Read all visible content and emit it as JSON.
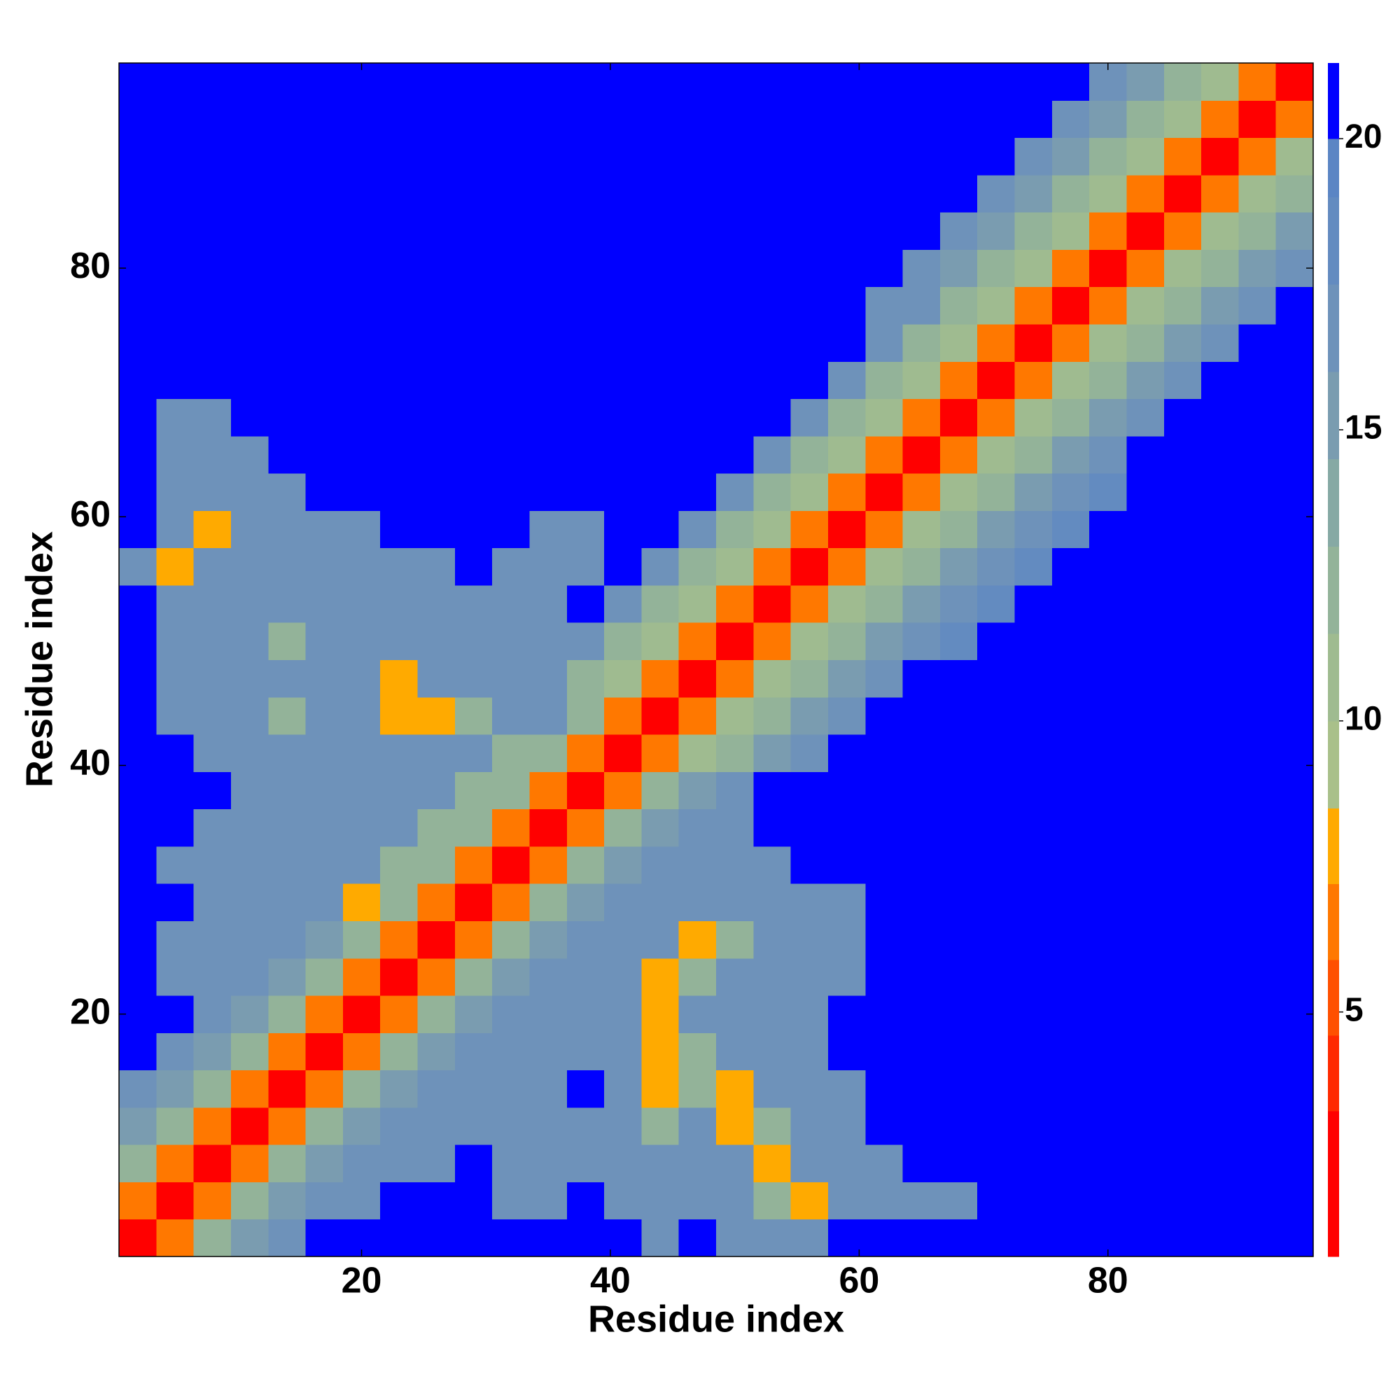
{
  "chart_data": {
    "type": "heatmap",
    "xlabel": "Residue index",
    "ylabel": "Residue index",
    "xbins": [
      0.5,
      3.5,
      6.5,
      9.5,
      12.5,
      15.5,
      18.5,
      21.5,
      24.5,
      27.5,
      30.5,
      33.5,
      36.5,
      39.5,
      42.5,
      45.5,
      48.5,
      51.5,
      54.5,
      57.5,
      60.5,
      63.5,
      66.5,
      69.5,
      72.5,
      75.5,
      78.5,
      81.5,
      84.5,
      87.5,
      90.5,
      93.5,
      96.5
    ],
    "ybins": [
      0.5,
      3.5,
      6.5,
      9.5,
      12.5,
      15.5,
      18.5,
      21.5,
      24.5,
      27.5,
      30.5,
      33.5,
      36.5,
      39.5,
      42.5,
      45.5,
      48.5,
      51.5,
      54.5,
      57.5,
      60.5,
      63.5,
      66.5,
      69.5,
      72.5,
      75.5,
      78.5,
      81.5,
      84.5,
      87.5,
      90.5,
      93.5,
      96.5
    ],
    "xlim": [
      0.5,
      96.5
    ],
    "ylim": [
      0.5,
      96.5
    ],
    "xticks": [
      20,
      40,
      60,
      80
    ],
    "yticks": [
      20,
      40,
      60,
      80
    ],
    "z": [
      [
        2,
        7,
        12,
        15,
        17,
        21,
        21,
        21,
        21,
        21,
        21,
        21,
        21,
        21,
        17,
        21,
        17,
        17,
        17,
        21,
        21,
        21,
        21,
        21,
        21,
        21,
        21,
        21,
        21,
        21,
        21,
        21
      ],
      [
        7,
        2,
        7,
        12,
        15,
        17,
        17,
        21,
        21,
        21,
        17,
        17,
        21,
        17,
        17,
        17,
        17,
        13,
        8,
        17,
        17,
        17,
        17,
        21,
        21,
        21,
        21,
        21,
        21,
        21,
        21,
        21
      ],
      [
        12,
        7,
        2,
        7,
        12,
        15,
        17,
        17,
        17,
        21,
        17,
        17,
        17,
        17,
        17,
        17,
        17,
        8,
        17,
        17,
        17,
        21,
        21,
        21,
        21,
        21,
        21,
        21,
        21,
        21,
        21,
        21
      ],
      [
        15,
        12,
        7,
        2,
        7,
        12,
        15,
        17,
        17,
        17,
        17,
        17,
        17,
        17,
        13,
        17,
        8,
        13,
        17,
        17,
        21,
        21,
        21,
        21,
        21,
        21,
        21,
        21,
        21,
        21,
        21,
        21
      ],
      [
        17,
        15,
        12,
        7,
        2,
        7,
        12,
        15,
        17,
        17,
        17,
        17,
        21,
        17,
        8,
        13,
        8,
        17,
        17,
        17,
        21,
        21,
        21,
        21,
        21,
        21,
        21,
        21,
        21,
        21,
        21,
        21
      ],
      [
        21,
        17,
        15,
        12,
        7,
        2,
        7,
        12,
        15,
        17,
        17,
        17,
        17,
        17,
        8,
        13,
        17,
        17,
        17,
        21,
        21,
        21,
        21,
        21,
        21,
        21,
        21,
        21,
        21,
        21,
        21,
        21
      ],
      [
        21,
        21,
        17,
        15,
        12,
        7,
        2,
        7,
        12,
        15,
        17,
        17,
        17,
        17,
        8,
        17,
        17,
        17,
        17,
        21,
        21,
        21,
        21,
        21,
        21,
        21,
        21,
        21,
        21,
        21,
        21,
        21
      ],
      [
        21,
        17,
        17,
        17,
        15,
        12,
        7,
        2,
        7,
        12,
        15,
        17,
        17,
        17,
        8,
        13,
        17,
        17,
        17,
        17,
        21,
        21,
        21,
        21,
        21,
        21,
        21,
        21,
        21,
        21,
        21,
        21
      ],
      [
        21,
        17,
        17,
        17,
        17,
        15,
        12,
        7,
        2,
        7,
        12,
        15,
        17,
        17,
        17,
        8,
        13,
        17,
        17,
        17,
        21,
        21,
        21,
        21,
        21,
        21,
        21,
        21,
        21,
        21,
        21,
        21
      ],
      [
        21,
        21,
        17,
        17,
        17,
        17,
        8,
        12,
        7,
        2,
        7,
        12,
        15,
        17,
        17,
        17,
        17,
        17,
        17,
        17,
        21,
        21,
        21,
        21,
        21,
        21,
        21,
        21,
        21,
        21,
        21,
        21
      ],
      [
        21,
        17,
        17,
        17,
        17,
        17,
        17,
        13,
        12,
        7,
        2,
        7,
        12,
        15,
        17,
        17,
        17,
        17,
        21,
        21,
        21,
        21,
        21,
        21,
        21,
        21,
        21,
        21,
        21,
        21,
        21,
        21
      ],
      [
        21,
        21,
        17,
        17,
        17,
        17,
        17,
        17,
        13,
        12,
        7,
        2,
        7,
        12,
        15,
        17,
        17,
        21,
        21,
        21,
        21,
        21,
        21,
        21,
        21,
        21,
        21,
        21,
        21,
        21,
        21,
        21
      ],
      [
        21,
        21,
        21,
        17,
        17,
        17,
        17,
        17,
        17,
        13,
        12,
        7,
        2,
        7,
        12,
        15,
        17,
        21,
        21,
        21,
        21,
        21,
        21,
        21,
        21,
        21,
        21,
        21,
        21,
        21,
        21,
        21
      ],
      [
        21,
        21,
        17,
        17,
        17,
        17,
        17,
        17,
        17,
        17,
        13,
        12,
        7,
        2,
        7,
        11,
        13,
        15,
        17,
        21,
        21,
        21,
        21,
        21,
        21,
        21,
        21,
        21,
        21,
        21,
        21,
        21
      ],
      [
        21,
        17,
        17,
        17,
        13,
        17,
        17,
        8,
        8,
        13,
        17,
        17,
        12,
        7,
        2,
        7,
        11,
        13,
        15,
        17,
        21,
        21,
        21,
        21,
        21,
        21,
        21,
        21,
        21,
        21,
        21,
        21
      ],
      [
        21,
        17,
        17,
        17,
        17,
        17,
        17,
        8,
        17,
        17,
        17,
        17,
        13,
        11,
        7,
        2,
        7,
        11,
        13,
        15,
        17,
        21,
        21,
        21,
        21,
        21,
        21,
        21,
        21,
        21,
        21,
        21
      ],
      [
        21,
        17,
        17,
        17,
        13,
        17,
        17,
        17,
        17,
        17,
        17,
        17,
        17,
        13,
        11,
        7,
        2,
        7,
        11,
        13,
        15,
        17,
        18,
        21,
        21,
        21,
        21,
        21,
        21,
        21,
        21,
        21
      ],
      [
        21,
        17,
        17,
        17,
        17,
        17,
        17,
        17,
        17,
        17,
        17,
        17,
        21,
        17,
        13,
        11,
        7,
        2,
        7,
        11,
        13,
        15,
        17,
        18,
        21,
        21,
        21,
        21,
        21,
        21,
        21,
        21
      ],
      [
        17,
        8,
        17,
        17,
        17,
        17,
        17,
        17,
        17,
        21,
        17,
        17,
        17,
        21,
        17,
        13,
        11,
        7,
        2,
        7,
        11,
        13,
        15,
        17,
        18,
        21,
        21,
        21,
        21,
        21,
        21,
        21
      ],
      [
        21,
        17,
        8,
        17,
        17,
        17,
        17,
        21,
        21,
        21,
        21,
        17,
        17,
        21,
        21,
        17,
        13,
        11,
        7,
        2,
        7,
        11,
        13,
        15,
        17,
        18,
        21,
        21,
        21,
        21,
        21,
        21
      ],
      [
        21,
        17,
        17,
        17,
        17,
        21,
        21,
        21,
        21,
        21,
        21,
        21,
        21,
        21,
        21,
        21,
        17,
        13,
        11,
        7,
        2,
        7,
        11,
        13,
        15,
        17,
        18,
        21,
        21,
        21,
        21,
        21
      ],
      [
        21,
        17,
        17,
        17,
        21,
        21,
        21,
        21,
        21,
        21,
        21,
        21,
        21,
        21,
        21,
        21,
        21,
        17,
        13,
        11,
        7,
        2,
        7,
        11,
        13,
        15,
        17,
        21,
        21,
        21,
        21,
        21
      ],
      [
        21,
        17,
        17,
        21,
        21,
        21,
        21,
        21,
        21,
        21,
        21,
        21,
        21,
        21,
        21,
        21,
        21,
        21,
        17,
        13,
        11,
        7,
        2,
        7,
        11,
        13,
        15,
        17,
        21,
        21,
        21,
        21
      ],
      [
        21,
        21,
        21,
        21,
        21,
        21,
        21,
        21,
        21,
        21,
        21,
        21,
        21,
        21,
        21,
        21,
        21,
        21,
        21,
        17,
        13,
        11,
        7,
        2,
        7,
        11,
        13,
        15,
        17,
        21,
        21,
        21
      ],
      [
        21,
        21,
        21,
        21,
        21,
        21,
        21,
        21,
        21,
        21,
        21,
        21,
        21,
        21,
        21,
        21,
        21,
        21,
        21,
        21,
        17,
        13,
        11,
        7,
        2,
        7,
        11,
        13,
        15,
        17,
        21,
        21
      ],
      [
        21,
        21,
        21,
        21,
        21,
        21,
        21,
        21,
        21,
        21,
        21,
        21,
        21,
        21,
        21,
        21,
        21,
        21,
        21,
        21,
        17,
        17,
        13,
        11,
        7,
        2,
        7,
        11,
        13,
        15,
        17,
        21
      ],
      [
        21,
        21,
        21,
        21,
        21,
        21,
        21,
        21,
        21,
        21,
        21,
        21,
        21,
        21,
        21,
        21,
        21,
        21,
        21,
        21,
        21,
        17,
        15,
        13,
        11,
        7,
        2,
        7,
        11,
        13,
        15,
        17
      ],
      [
        21,
        21,
        21,
        21,
        21,
        21,
        21,
        21,
        21,
        21,
        21,
        21,
        21,
        21,
        21,
        21,
        21,
        21,
        21,
        21,
        21,
        21,
        17,
        15,
        13,
        11,
        7,
        2,
        7,
        11,
        13,
        15
      ],
      [
        21,
        21,
        21,
        21,
        21,
        21,
        21,
        21,
        21,
        21,
        21,
        21,
        21,
        21,
        21,
        21,
        21,
        21,
        21,
        21,
        21,
        21,
        21,
        17,
        15,
        13,
        11,
        7,
        2,
        7,
        11,
        13
      ],
      [
        21,
        21,
        21,
        21,
        21,
        21,
        21,
        21,
        21,
        21,
        21,
        21,
        21,
        21,
        21,
        21,
        21,
        21,
        21,
        21,
        21,
        21,
        21,
        21,
        17,
        15,
        13,
        11,
        7,
        2,
        7,
        11
      ],
      [
        21,
        21,
        21,
        21,
        21,
        21,
        21,
        21,
        21,
        21,
        21,
        21,
        21,
        21,
        21,
        21,
        21,
        21,
        21,
        21,
        21,
        21,
        21,
        21,
        21,
        17,
        15,
        13,
        11,
        7,
        2,
        7
      ],
      [
        21,
        21,
        21,
        21,
        21,
        21,
        21,
        21,
        21,
        21,
        21,
        21,
        21,
        21,
        21,
        21,
        21,
        21,
        21,
        21,
        21,
        21,
        21,
        21,
        21,
        21,
        17,
        15,
        13,
        11,
        7,
        2
      ]
    ],
    "colorscale": {
      "bounds": [
        0.8,
        3.3,
        4.6,
        5.9,
        7.2,
        8.5,
        10,
        11.5,
        13,
        14.5,
        16,
        17.5,
        19,
        20,
        21.3
      ],
      "colors": [
        "#ff0000",
        "#ff2a00",
        "#ff5000",
        "#ff7800",
        "#ffaa00",
        "#a9c08a",
        "#9fbb90",
        "#93b399",
        "#86a9a4",
        "#7a9cb0",
        "#6e92ba",
        "#638bc0",
        "#5b85c4",
        "#0000ff"
      ]
    },
    "cticks": [
      5,
      10,
      15,
      20
    ]
  }
}
